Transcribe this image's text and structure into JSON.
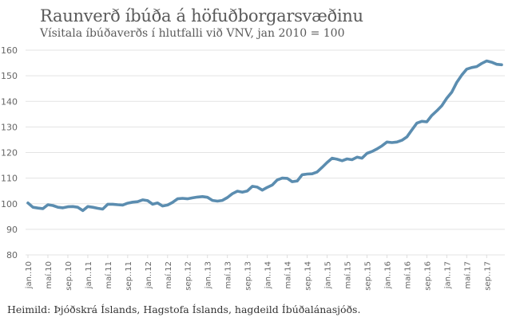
{
  "header": {
    "title": "Raunverð íbúða á höfuðborgarsvæðinu",
    "subtitle": "Vísitala íbúðaverðs í hlutfalli við VNV, jan 2010 = 100"
  },
  "footer": {
    "source": "Heimild: Þjóðskrá Íslands, Hagstofa Íslands, hagdeild Íbúðalánasjóðs."
  },
  "style": {
    "line_color": "#5b8db0",
    "grid_color": "#e3e3e3"
  },
  "chart_data": {
    "type": "line",
    "title": "Raunverð íbúða á höfuðborgarsvæðinu",
    "subtitle": "Vísitala íbúðaverðs í hlutfalli við VNV, jan 2010 = 100",
    "xlabel": "",
    "ylabel": "",
    "ylim": [
      80,
      160
    ],
    "yticks": [
      80,
      90,
      100,
      110,
      120,
      130,
      140,
      150,
      160
    ],
    "grid": true,
    "legend": null,
    "x_tick_labels": [
      "jan..10",
      "maí.10",
      "sep..10",
      "jan..11",
      "maí.11",
      "sep..11",
      "jan..12",
      "maí.12",
      "sep..12",
      "jan..13",
      "maí.13",
      "sep..13",
      "jan..14",
      "maí.14",
      "sep..14",
      "jan..15",
      "maí.15",
      "sep..15",
      "jan..16",
      "maí.16",
      "sep..16",
      "jan..17",
      "maí.17",
      "sep..17"
    ],
    "x_tick_every_n_months": 4,
    "series": [
      {
        "name": "Vísitala íbúðaverðs / VNV",
        "frequency": "monthly",
        "start": "jan 2010",
        "values": [
          100.3,
          98.6,
          98.3,
          98.1,
          99.6,
          99.3,
          98.6,
          98.4,
          98.8,
          98.9,
          98.6,
          97.3,
          98.9,
          98.6,
          98.2,
          97.9,
          99.8,
          99.8,
          99.6,
          99.5,
          100.2,
          100.6,
          100.8,
          101.5,
          101.2,
          99.8,
          100.3,
          99.1,
          99.5,
          100.5,
          101.9,
          102.1,
          101.9,
          102.3,
          102.6,
          102.8,
          102.5,
          101.3,
          101.0,
          101.3,
          102.4,
          103.9,
          104.9,
          104.5,
          105.0,
          106.8,
          106.5,
          105.3,
          106.4,
          107.3,
          109.3,
          110.0,
          109.9,
          108.6,
          108.9,
          111.3,
          111.6,
          111.7,
          112.4,
          114.2,
          116.1,
          117.8,
          117.4,
          116.8,
          117.5,
          117.2,
          118.2,
          117.8,
          119.7,
          120.4,
          121.4,
          122.6,
          124.1,
          123.9,
          124.1,
          124.8,
          126.1,
          128.8,
          131.5,
          132.2,
          132.0,
          134.5,
          136.3,
          138.3,
          141.2,
          143.6,
          147.4,
          150.3,
          152.6,
          153.2,
          153.6,
          154.8,
          155.8,
          155.3,
          154.5,
          154.3
        ]
      }
    ]
  }
}
